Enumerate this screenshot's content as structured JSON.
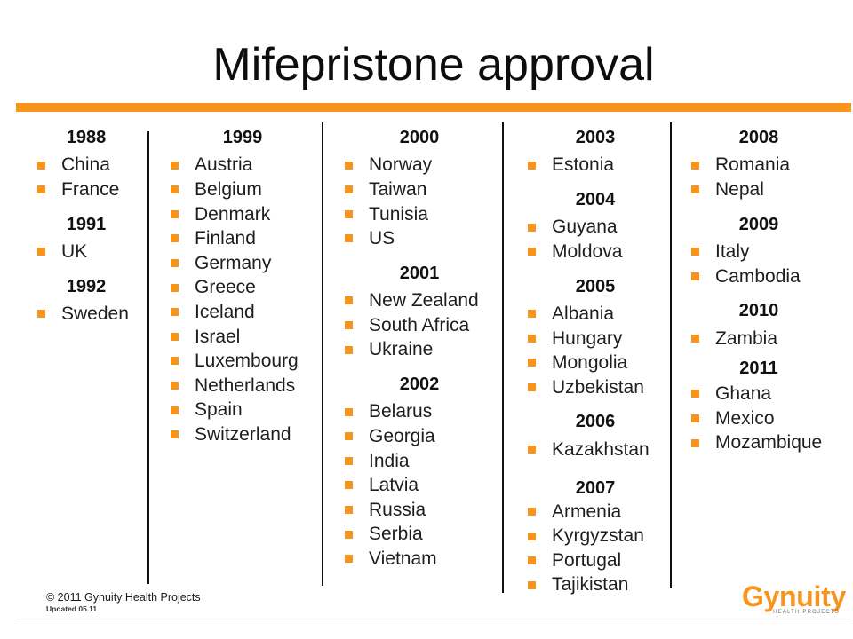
{
  "title": "Mifepristone approval",
  "columns": [
    {
      "groups": [
        {
          "year": "1988",
          "countries": [
            "China",
            "France"
          ]
        },
        {
          "year": "1991",
          "countries": [
            "UK"
          ]
        },
        {
          "year": "1992",
          "countries": [
            "Sweden"
          ]
        }
      ]
    },
    {
      "groups": [
        {
          "year": "1999",
          "countries": [
            "Austria",
            "Belgium",
            "Denmark",
            "Finland",
            "Germany",
            "Greece",
            "Iceland",
            "Israel",
            "Luxembourg",
            "Netherlands",
            "Spain",
            "Switzerland"
          ]
        }
      ]
    },
    {
      "groups": [
        {
          "year": "2000",
          "countries": [
            "Norway",
            "Taiwan",
            "Tunisia",
            "US"
          ]
        },
        {
          "year": "2001",
          "countries": [
            "New Zealand",
            "South Africa",
            "Ukraine"
          ]
        },
        {
          "year": "2002",
          "countries": [
            "Belarus",
            "Georgia",
            "India",
            "Latvia",
            "Russia",
            "Serbia",
            "Vietnam"
          ]
        }
      ]
    },
    {
      "groups": [
        {
          "year": "2003",
          "countries": [
            "Estonia"
          ]
        },
        {
          "year": "2004",
          "countries": [
            "Guyana",
            "Moldova"
          ]
        },
        {
          "year": "2005",
          "countries": [
            "Albania",
            "Hungary",
            "Mongolia",
            "Uzbekistan"
          ]
        },
        {
          "year": "2006",
          "countries": [
            "Kazakhstan"
          ]
        },
        {
          "year": "2007",
          "countries": [
            "Armenia",
            "Kyrgyzstan",
            "Portugal",
            "Tajikistan"
          ]
        }
      ]
    },
    {
      "groups": [
        {
          "year": "2008",
          "countries": [
            "Romania",
            "Nepal"
          ]
        },
        {
          "year": "2009",
          "countries": [
            "Italy",
            "Cambodia"
          ]
        },
        {
          "year": "2010",
          "countries": [
            "Zambia"
          ]
        },
        {
          "year": "2011",
          "countries": [
            "Ghana",
            "Mexico",
            "Mozambique"
          ]
        }
      ]
    }
  ],
  "footer": {
    "copyright": "© 2011 Gynuity Health Projects",
    "updated": "Updated 05.11"
  },
  "logo": {
    "name": "Gynuity",
    "tagline": "HEALTH PROJECTS"
  },
  "icons": {
    "bullet": "square-bullet-icon"
  },
  "colors": {
    "accent": "#F7941E",
    "text": "#1E1E1E",
    "rule": "#111111"
  }
}
